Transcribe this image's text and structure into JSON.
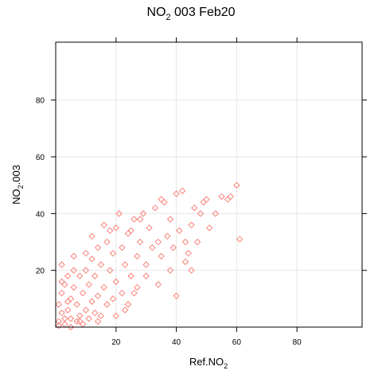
{
  "chart_data": {
    "type": "scatter",
    "title": {
      "main": "NO",
      "sub": "2",
      "rest": " 003 Feb20"
    },
    "x_label": {
      "main": "Ref.NO",
      "sub": "2"
    },
    "y_label": {
      "main": "NO",
      "sub": "2",
      "rest": ".003"
    },
    "color": "#f8766d",
    "grid": true,
    "xlim": [
      0,
      101.6
    ],
    "ylim": [
      0,
      100.4
    ],
    "xticks": [
      20,
      40,
      60,
      80
    ],
    "yticks": [
      20,
      40,
      60,
      80
    ],
    "x": [
      1,
      2,
      3,
      1,
      2,
      3,
      4,
      5,
      5,
      6,
      7,
      8,
      8,
      9,
      10,
      10,
      11,
      12,
      12,
      13,
      14,
      14,
      15,
      16,
      17,
      18,
      19,
      20,
      20,
      21,
      22,
      23,
      24,
      25,
      26,
      27,
      28,
      29,
      30,
      31,
      32,
      33,
      34,
      35,
      36,
      37,
      38,
      39,
      40,
      41,
      42,
      43,
      44,
      45,
      46,
      47,
      48,
      49,
      50,
      51,
      53,
      55,
      57,
      58,
      60,
      61,
      2,
      4,
      6,
      1,
      3,
      5,
      7,
      9,
      11,
      13,
      15,
      17,
      19,
      22,
      24,
      27,
      30,
      34,
      38,
      40,
      45,
      16,
      18,
      25,
      28,
      12,
      10,
      6,
      8,
      4,
      2,
      14,
      20,
      23,
      43,
      35,
      26
    ],
    "y": [
      2,
      5,
      1,
      8,
      12,
      15,
      6,
      10,
      3,
      14,
      8,
      18,
      4,
      12,
      20,
      6,
      15,
      24,
      9,
      18,
      28,
      11,
      22,
      14,
      30,
      20,
      26,
      35,
      16,
      40,
      28,
      22,
      33,
      18,
      38,
      25,
      30,
      40,
      22,
      35,
      28,
      42,
      30,
      25,
      44,
      32,
      38,
      28,
      47,
      34,
      48,
      30,
      26,
      36,
      42,
      30,
      40,
      44,
      45,
      35,
      40,
      46,
      45,
      46,
      50,
      31,
      22,
      18,
      20,
      0.5,
      3,
      0,
      2,
      1,
      3,
      5,
      4,
      8,
      10,
      12,
      8,
      14,
      18,
      15,
      20,
      11,
      20,
      36,
      34,
      34,
      38,
      32,
      26,
      25,
      2,
      9,
      16,
      2,
      4,
      6,
      23,
      45,
      12
    ]
  }
}
